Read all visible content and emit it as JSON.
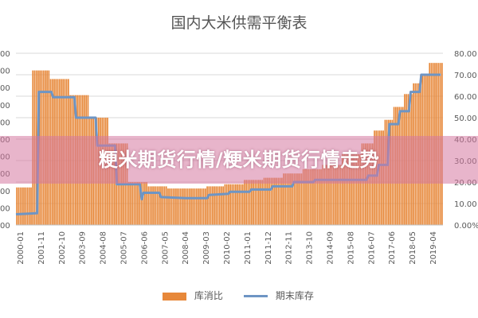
{
  "chart_data": {
    "type": "bar",
    "title": "国内大米供需平衡表",
    "left_axis_ticks": [
      "00",
      "00",
      "00",
      "00",
      "00",
      "00",
      "00",
      "00",
      "00",
      "00",
      "00"
    ],
    "right_axis_ticks": [
      "80.00",
      "70.00",
      "60.00",
      "50.00",
      "40.00",
      "30.00",
      "20.00",
      "10.00",
      "0.00%"
    ],
    "right_ylim": [
      0,
      80
    ],
    "left_ylim": [
      0,
      100
    ],
    "categories": [
      "2000-01",
      "2001-11",
      "2002-10",
      "2003-09",
      "2004-08",
      "2005-07",
      "2006-06",
      "2007-05",
      "2008-04",
      "2009-03",
      "2010-02",
      "2011-01",
      "2011-12",
      "2012-11",
      "2013-10",
      "2014-09",
      "2015-08",
      "2016-07",
      "2017-06",
      "2018-05",
      "2019-04"
    ],
    "x_range": [
      2000.0,
      2020.1
    ],
    "series": [
      {
        "name": "库消比",
        "kind": "bar",
        "axis": "right",
        "steps": [
          [
            2000.0,
            17.5
          ],
          [
            2000.75,
            72.0
          ],
          [
            2001.58,
            68.0
          ],
          [
            2002.5,
            60.5
          ],
          [
            2003.42,
            50.0
          ],
          [
            2004.33,
            38.0
          ],
          [
            2005.25,
            20.0
          ],
          [
            2006.17,
            18.0
          ],
          [
            2007.08,
            17.0
          ],
          [
            2008.0,
            17.0
          ],
          [
            2008.92,
            18.0
          ],
          [
            2009.83,
            19.0
          ],
          [
            2010.75,
            21.0
          ],
          [
            2011.67,
            22.0
          ],
          [
            2012.58,
            24.0
          ],
          [
            2013.5,
            26.0
          ],
          [
            2014.42,
            28.0
          ],
          [
            2015.33,
            33.0
          ],
          [
            2016.25,
            38.0
          ],
          [
            2016.83,
            44.0
          ],
          [
            2017.33,
            49.0
          ],
          [
            2017.75,
            55.0
          ],
          [
            2018.25,
            61.0
          ],
          [
            2018.67,
            66.0
          ],
          [
            2019.0,
            70.0
          ],
          [
            2019.42,
            75.5
          ]
        ]
      },
      {
        "name": "期末库存",
        "kind": "line",
        "axis": "right",
        "points": [
          [
            2000.0,
            5.0
          ],
          [
            2000.6,
            5.3
          ],
          [
            2001.0,
            5.5
          ],
          [
            2001.08,
            62.0
          ],
          [
            2001.67,
            62.0
          ],
          [
            2001.75,
            59.5
          ],
          [
            2002.75,
            59.5
          ],
          [
            2002.83,
            50.0
          ],
          [
            2003.75,
            50.0
          ],
          [
            2003.83,
            37.0
          ],
          [
            2004.67,
            37.0
          ],
          [
            2004.75,
            19.0
          ],
          [
            2005.83,
            19.0
          ],
          [
            2005.92,
            12.0
          ],
          [
            2006.0,
            15.0
          ],
          [
            2006.75,
            15.0
          ],
          [
            2006.83,
            13.0
          ],
          [
            2008.0,
            12.5
          ],
          [
            2009.0,
            12.5
          ],
          [
            2009.08,
            14.0
          ],
          [
            2010.0,
            14.5
          ],
          [
            2010.08,
            15.5
          ],
          [
            2011.0,
            15.5
          ],
          [
            2011.08,
            16.5
          ],
          [
            2012.0,
            16.5
          ],
          [
            2012.08,
            18.0
          ],
          [
            2013.0,
            18.0
          ],
          [
            2013.08,
            20.0
          ],
          [
            2014.0,
            20.0
          ],
          [
            2014.08,
            21.0
          ],
          [
            2016.5,
            21.0
          ],
          [
            2016.58,
            23.0
          ],
          [
            2017.0,
            23.0
          ],
          [
            2017.08,
            28.0
          ],
          [
            2017.5,
            28.0
          ],
          [
            2017.58,
            47.0
          ],
          [
            2018.0,
            47.0
          ],
          [
            2018.08,
            53.0
          ],
          [
            2018.5,
            53.0
          ],
          [
            2018.58,
            62.0
          ],
          [
            2019.0,
            62.0
          ],
          [
            2019.08,
            70.0
          ],
          [
            2020.0,
            70.0
          ]
        ]
      }
    ],
    "legend_position": "bottom",
    "grid": true
  },
  "colors": {
    "bar": "#E7883A",
    "line": "#6E95C4",
    "grid": "#D9D9D9",
    "axis_text": "#595959",
    "banner": "#D678A0"
  },
  "legend": {
    "bar_label": "库消比",
    "line_label": "期末库存"
  },
  "overlay": {
    "banner_text": "粳米期货行情/粳米期货行情走势"
  }
}
